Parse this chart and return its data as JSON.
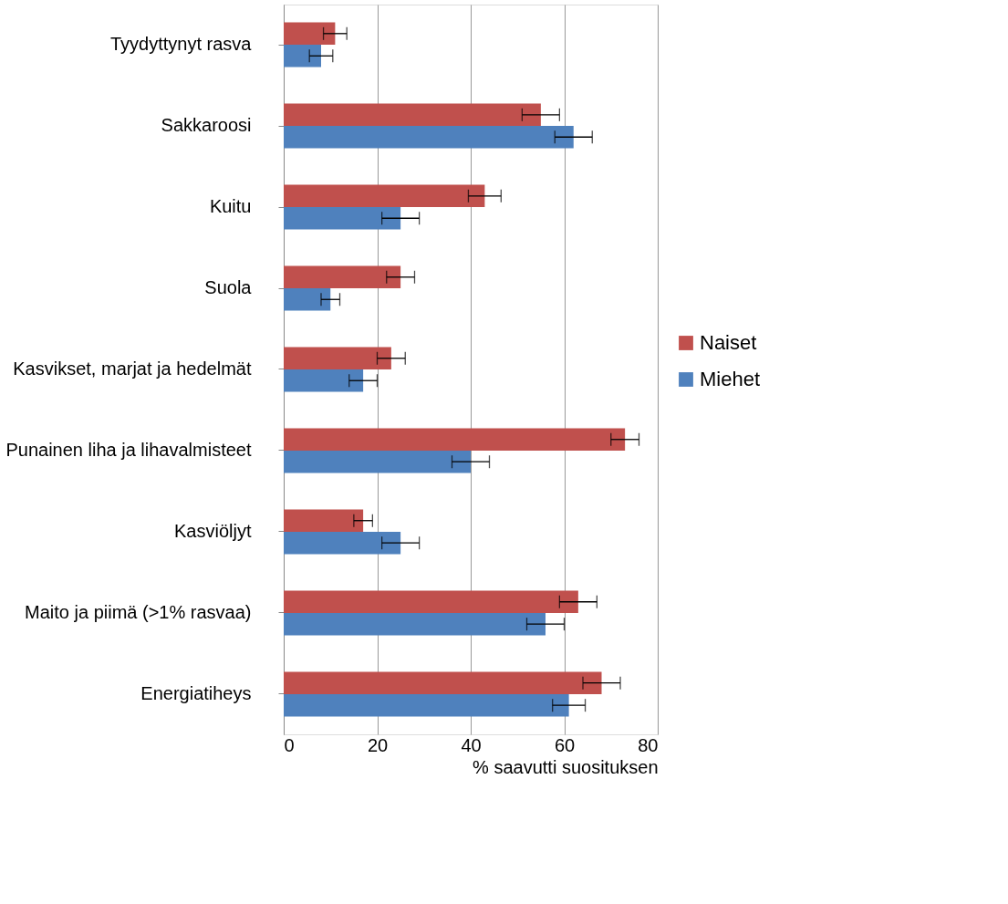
{
  "chart_data": {
    "type": "bar",
    "orientation": "horizontal",
    "categories": [
      "Tyydyttynyt rasva",
      "Sakkaroosi",
      "Kuitu",
      "Suola",
      "Kasvikset, marjat ja hedelmät",
      "Punainen liha ja lihavalmisteet",
      "Kasviöljyt",
      "Maito ja piimä (>1% rasvaa)",
      "Energiatiheys"
    ],
    "series": [
      {
        "name": "Naiset",
        "color": "#c0504d",
        "values": [
          11,
          55,
          43,
          25,
          23,
          73,
          17,
          63,
          68
        ],
        "errors": [
          2.5,
          4,
          3.5,
          3,
          3,
          3,
          2,
          4,
          4
        ]
      },
      {
        "name": "Miehet",
        "color": "#4f81bd",
        "values": [
          8,
          62,
          25,
          10,
          17,
          40,
          25,
          56,
          61
        ],
        "errors": [
          2.5,
          4,
          4,
          2,
          3,
          4,
          4,
          4,
          3.5
        ]
      }
    ],
    "xlabel": "% saavutti suosituksen",
    "xlim": [
      0,
      80
    ],
    "xticks": [
      0,
      20,
      40,
      60,
      80
    ],
    "grid": "x",
    "legend": "right"
  }
}
